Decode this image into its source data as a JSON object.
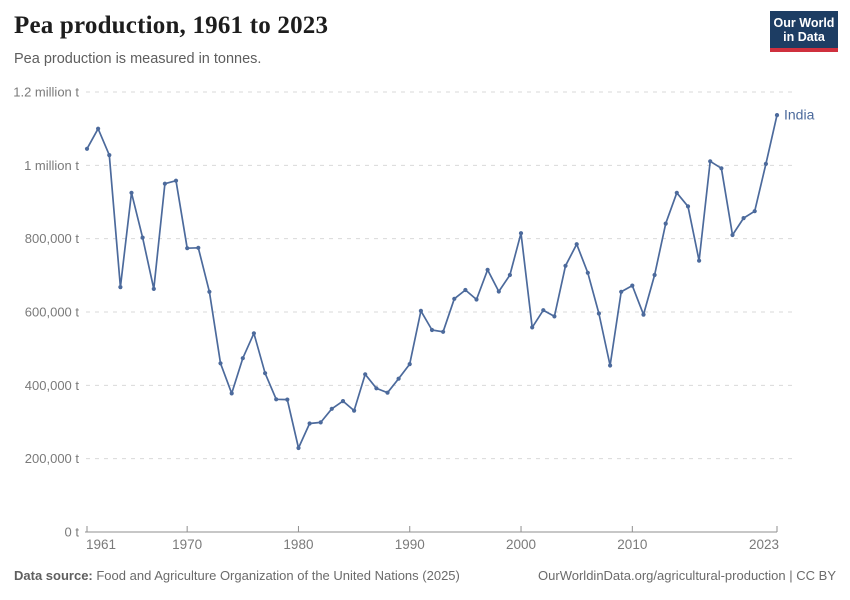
{
  "header": {
    "title": "Pea production, 1961 to 2023",
    "subtitle": "Pea production is measured in tonnes.",
    "logo_line1": "Our World",
    "logo_line2": "in Data"
  },
  "footer": {
    "source_label": "Data source:",
    "source_text": " Food and Agriculture Organization of the United Nations (2025)",
    "link_text": "OurWorldinData.org/agricultural-production",
    "separator": " | ",
    "license_text": "CC BY"
  },
  "colors": {
    "series_line": "#4C6A9C",
    "grid": "#dadada",
    "axis": "#8f8f8f",
    "tick_label": "#7a7a7a",
    "logo_bg": "#1d3d63",
    "logo_stripe": "#cf303e"
  },
  "chart_data": {
    "type": "line",
    "title": "Pea production, 1961 to 2023",
    "ylabel": "",
    "xlabel": "",
    "unit": "tonnes",
    "grid": "horizontal-dashed",
    "legend_position": "end-of-line-label",
    "xlim": [
      1961,
      2023
    ],
    "ylim": [
      0,
      1200000
    ],
    "x_ticks": [
      1961,
      1970,
      1980,
      1990,
      2000,
      2010,
      2023
    ],
    "y_ticks": [
      {
        "value": 0,
        "label": "0 t"
      },
      {
        "value": 200000,
        "label": "200,000 t"
      },
      {
        "value": 400000,
        "label": "400,000 t"
      },
      {
        "value": 600000,
        "label": "600,000 t"
      },
      {
        "value": 800000,
        "label": "800,000 t"
      },
      {
        "value": 1000000,
        "label": "1 million t"
      },
      {
        "value": 1200000,
        "label": "1.2 million t"
      }
    ],
    "series": [
      {
        "name": "India",
        "color": "#4C6A9C",
        "x": [
          1961,
          1962,
          1963,
          1964,
          1965,
          1966,
          1967,
          1968,
          1969,
          1970,
          1971,
          1972,
          1973,
          1974,
          1975,
          1976,
          1977,
          1978,
          1979,
          1980,
          1981,
          1982,
          1983,
          1984,
          1985,
          1986,
          1987,
          1988,
          1989,
          1990,
          1991,
          1992,
          1993,
          1994,
          1995,
          1996,
          1997,
          1998,
          1999,
          2000,
          2001,
          2002,
          2003,
          2004,
          2005,
          2006,
          2007,
          2008,
          2009,
          2010,
          2011,
          2012,
          2013,
          2014,
          2015,
          2016,
          2017,
          2018,
          2019,
          2020,
          2021,
          2022,
          2023
        ],
        "values": [
          1045000,
          1100000,
          1028000,
          668000,
          925000,
          803000,
          663000,
          950000,
          958000,
          774000,
          775000,
          655000,
          460000,
          378000,
          474000,
          542000,
          433000,
          362000,
          361000,
          229000,
          296000,
          299000,
          336000,
          357000,
          331000,
          430000,
          392000,
          380000,
          418000,
          458000,
          603000,
          551000,
          546000,
          636000,
          660000,
          634000,
          715000,
          656000,
          701000,
          815000,
          558000,
          605000,
          588000,
          726000,
          785000,
          707000,
          596000,
          454000,
          655000,
          672000,
          593000,
          701000,
          841000,
          925000,
          888000,
          740000,
          1011000,
          992000,
          810000,
          856000,
          875000,
          1004000,
          1137000
        ]
      }
    ]
  }
}
